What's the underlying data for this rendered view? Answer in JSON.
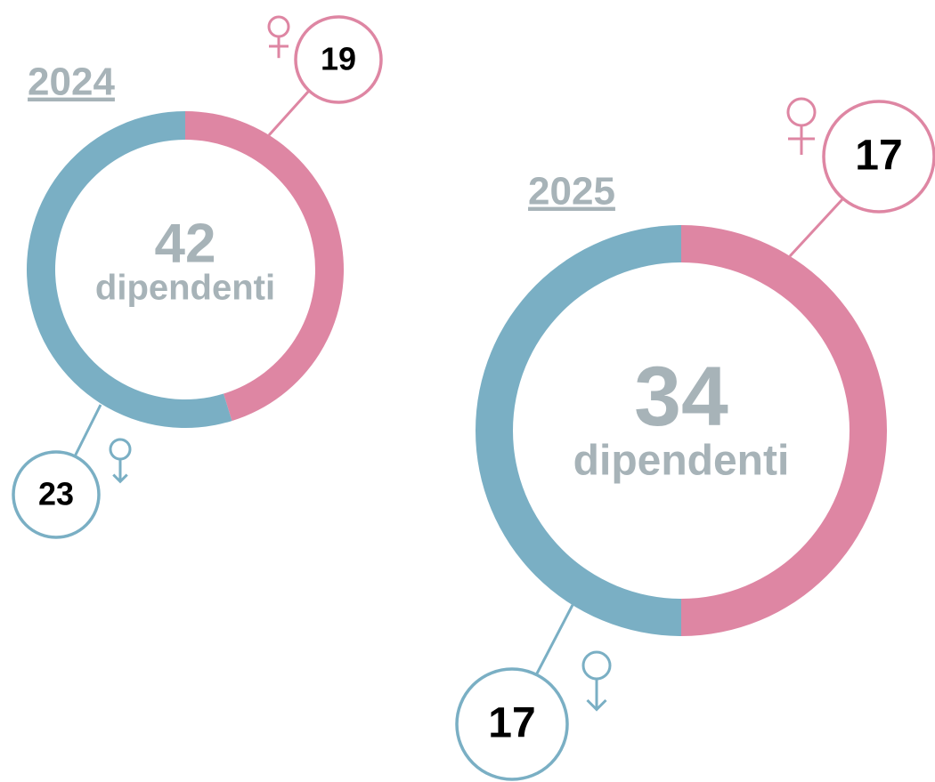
{
  "chart_data": [
    {
      "type": "donut",
      "title": "2024",
      "total": 42,
      "total_label": "dipendenti",
      "values": [
        19,
        23
      ],
      "colors": [
        "#de86a3",
        "#7aafc4"
      ]
    },
    {
      "type": "donut",
      "title": "2025",
      "total": 34,
      "total_label": "dipendenti",
      "values": [
        17,
        17
      ],
      "colors": [
        "#de86a3",
        "#7aafc4"
      ]
    }
  ]
}
